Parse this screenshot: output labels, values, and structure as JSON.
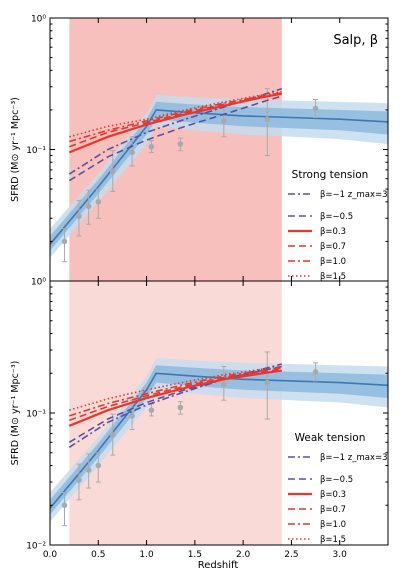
{
  "figure": {
    "xlabel": "Redshift"
  },
  "chart_data": [
    {
      "type": "line",
      "panel": "top",
      "annotation": "Salp, β",
      "legend_title": "Strong tension",
      "ylabel": "SFRD (M⊙ yr⁻¹ Mpc⁻³)",
      "yscale": "log",
      "ylim": [
        0.01,
        1.0
      ],
      "xlim": [
        0,
        3.5
      ],
      "ytick_labels": [
        "10⁻²",
        "10⁻¹",
        "10⁰"
      ],
      "xtick_labels": [
        "0.0",
        "0.5",
        "1.0",
        "1.5",
        "2.0",
        "2.5",
        "3.0"
      ],
      "shaded_region": {
        "x": [
          0.2,
          2.4
        ],
        "ymax": 1.0
      },
      "reference_model": {
        "x": [
          0.0,
          0.5,
          1.0,
          1.1,
          1.5,
          2.0,
          2.5,
          3.0,
          3.5
        ],
        "y": [
          0.019,
          0.052,
          0.15,
          0.2,
          0.19,
          0.18,
          0.175,
          0.17,
          0.162
        ],
        "band_inner": [
          [
            0.017,
            0.022
          ],
          [
            0.046,
            0.059
          ],
          [
            0.13,
            0.17
          ],
          [
            0.17,
            0.23
          ],
          [
            0.16,
            0.22
          ],
          [
            0.15,
            0.21
          ],
          [
            0.145,
            0.205
          ],
          [
            0.14,
            0.2
          ],
          [
            0.13,
            0.195
          ]
        ],
        "band_outer": [
          [
            0.015,
            0.025
          ],
          [
            0.04,
            0.066
          ],
          [
            0.11,
            0.19
          ],
          [
            0.15,
            0.26
          ],
          [
            0.14,
            0.25
          ],
          [
            0.13,
            0.24
          ],
          [
            0.125,
            0.235
          ],
          [
            0.12,
            0.23
          ],
          [
            0.11,
            0.225
          ]
        ]
      },
      "observations": {
        "x": [
          0.15,
          0.3,
          0.4,
          0.5,
          0.65,
          0.85,
          1.05,
          1.35,
          1.8,
          2.25,
          2.75
        ],
        "y": [
          0.02,
          0.031,
          0.037,
          0.04,
          0.068,
          0.095,
          0.105,
          0.11,
          0.165,
          0.17,
          0.205
        ],
        "yerr_low": [
          0.006,
          0.009,
          0.01,
          0.01,
          0.02,
          0.02,
          0.01,
          0.012,
          0.04,
          0.08,
          0.03
        ],
        "yerr_high": [
          0.005,
          0.01,
          0.012,
          0.01,
          0.03,
          0.03,
          0.012,
          0.012,
          0.06,
          0.12,
          0.035
        ]
      },
      "series": [
        {
          "name": "β=−1  z_max=3",
          "color": "#5a50a0",
          "dash": "dashdot",
          "x": [
            0.2,
            0.6,
            1.0,
            1.4,
            1.8,
            2.2,
            2.4
          ],
          "y": [
            0.065,
            0.1,
            0.135,
            0.17,
            0.21,
            0.26,
            0.29
          ]
        },
        {
          "name": "β=−0.5",
          "color": "#5a50a0",
          "dash": "dashed",
          "x": [
            0.2,
            0.6,
            1.0,
            1.4,
            1.8,
            2.2,
            2.4
          ],
          "y": [
            0.058,
            0.088,
            0.118,
            0.15,
            0.185,
            0.23,
            0.255
          ]
        },
        {
          "name": "β=0.3",
          "color": "#e8372c",
          "dash": "solid",
          "x": [
            0.2,
            0.6,
            1.0,
            1.4,
            1.8,
            2.2,
            2.4
          ],
          "y": [
            0.095,
            0.125,
            0.155,
            0.185,
            0.215,
            0.25,
            0.265
          ]
        },
        {
          "name": "β=0.7",
          "color": "#e8372c",
          "dash": "dashed",
          "x": [
            0.2,
            0.6,
            1.0,
            1.4,
            1.8,
            2.2,
            2.4
          ],
          "y": [
            0.105,
            0.135,
            0.16,
            0.19,
            0.22,
            0.25,
            0.265
          ]
        },
        {
          "name": "β=1.0",
          "color": "#e8372c",
          "dash": "dashdot",
          "x": [
            0.2,
            0.6,
            1.0,
            1.4,
            1.8,
            2.2,
            2.4
          ],
          "y": [
            0.115,
            0.14,
            0.165,
            0.195,
            0.225,
            0.255,
            0.27
          ]
        },
        {
          "name": "β=1.5",
          "color": "#e8372c",
          "dash": "dotted",
          "x": [
            0.2,
            0.6,
            1.0,
            1.4,
            1.8,
            2.2,
            2.4
          ],
          "y": [
            0.125,
            0.15,
            0.17,
            0.2,
            0.23,
            0.26,
            0.275
          ]
        }
      ]
    },
    {
      "type": "line",
      "panel": "bottom",
      "annotation": "",
      "legend_title": "Weak tension",
      "ylabel": "SFRD (M⊙ yr⁻¹ Mpc⁻³)",
      "yscale": "log",
      "ylim": [
        0.01,
        1.0
      ],
      "xlim": [
        0,
        3.5
      ],
      "ytick_labels": [
        "10⁻²",
        "10⁻¹",
        "10⁰"
      ],
      "xtick_labels": [
        "0.0",
        "0.5",
        "1.0",
        "1.5",
        "2.0",
        "2.5",
        "3.0"
      ],
      "shaded_region": {
        "x": [
          0.2,
          2.4
        ],
        "ymax": 1.0
      },
      "reference_model": {
        "x": [
          0.0,
          0.5,
          1.0,
          1.1,
          1.5,
          2.0,
          2.5,
          3.0,
          3.5
        ],
        "y": [
          0.019,
          0.052,
          0.15,
          0.2,
          0.19,
          0.18,
          0.175,
          0.17,
          0.162
        ],
        "band_inner": [
          [
            0.017,
            0.022
          ],
          [
            0.046,
            0.059
          ],
          [
            0.13,
            0.17
          ],
          [
            0.17,
            0.23
          ],
          [
            0.16,
            0.22
          ],
          [
            0.15,
            0.21
          ],
          [
            0.145,
            0.205
          ],
          [
            0.14,
            0.2
          ],
          [
            0.13,
            0.195
          ]
        ],
        "band_outer": [
          [
            0.015,
            0.025
          ],
          [
            0.04,
            0.066
          ],
          [
            0.11,
            0.19
          ],
          [
            0.15,
            0.26
          ],
          [
            0.14,
            0.25
          ],
          [
            0.13,
            0.24
          ],
          [
            0.125,
            0.235
          ],
          [
            0.12,
            0.23
          ],
          [
            0.11,
            0.225
          ]
        ]
      },
      "observations": {
        "x": [
          0.15,
          0.3,
          0.4,
          0.5,
          0.65,
          0.85,
          1.05,
          1.35,
          1.8,
          2.25,
          2.75
        ],
        "y": [
          0.02,
          0.031,
          0.037,
          0.04,
          0.068,
          0.095,
          0.105,
          0.11,
          0.165,
          0.17,
          0.205
        ],
        "yerr_low": [
          0.006,
          0.009,
          0.01,
          0.01,
          0.02,
          0.02,
          0.01,
          0.012,
          0.04,
          0.08,
          0.03
        ],
        "yerr_high": [
          0.005,
          0.01,
          0.012,
          0.01,
          0.03,
          0.03,
          0.012,
          0.012,
          0.06,
          0.12,
          0.035
        ]
      },
      "series": [
        {
          "name": "β=−1  z_max=3",
          "color": "#5a50a0",
          "dash": "dashdot",
          "x": [
            0.2,
            0.6,
            1.0,
            1.4,
            1.8,
            2.2,
            2.4
          ],
          "y": [
            0.055,
            0.085,
            0.115,
            0.145,
            0.18,
            0.215,
            0.235
          ]
        },
        {
          "name": "β=−0.5",
          "color": "#5a50a0",
          "dash": "dashed",
          "x": [
            0.2,
            0.6,
            1.0,
            1.4,
            1.8,
            2.2,
            2.4
          ],
          "y": [
            0.06,
            0.09,
            0.12,
            0.15,
            0.18,
            0.21,
            0.225
          ]
        },
        {
          "name": "β=0.3",
          "color": "#e8372c",
          "dash": "solid",
          "x": [
            0.2,
            0.6,
            1.0,
            1.4,
            1.8,
            2.2,
            2.4
          ],
          "y": [
            0.08,
            0.105,
            0.13,
            0.155,
            0.18,
            0.2,
            0.21
          ]
        },
        {
          "name": "β=0.7",
          "color": "#e8372c",
          "dash": "dashed",
          "x": [
            0.2,
            0.6,
            1.0,
            1.4,
            1.8,
            2.2,
            2.4
          ],
          "y": [
            0.088,
            0.112,
            0.135,
            0.16,
            0.185,
            0.205,
            0.215
          ]
        },
        {
          "name": "β=1.0",
          "color": "#e8372c",
          "dash": "dashdot",
          "x": [
            0.2,
            0.6,
            1.0,
            1.4,
            1.8,
            2.2,
            2.4
          ],
          "y": [
            0.095,
            0.118,
            0.14,
            0.165,
            0.19,
            0.21,
            0.22
          ]
        },
        {
          "name": "β=1.5",
          "color": "#e8372c",
          "dash": "dotted",
          "x": [
            0.2,
            0.6,
            1.0,
            1.4,
            1.8,
            2.2,
            2.4
          ],
          "y": [
            0.105,
            0.128,
            0.15,
            0.172,
            0.195,
            0.215,
            0.225
          ]
        }
      ]
    }
  ]
}
